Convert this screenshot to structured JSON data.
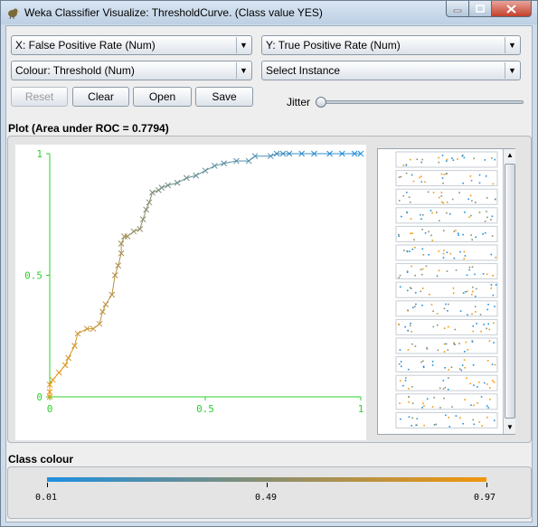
{
  "window": {
    "title": "Weka Classifier Visualize: ThresholdCurve. (Class value YES)"
  },
  "controls": {
    "x_axis": "X: False Positive Rate (Num)",
    "y_axis": "Y: True Positive Rate (Num)",
    "colour": "Colour: Threshold (Num)",
    "select": "Select Instance",
    "reset": "Reset",
    "clear": "Clear",
    "open": "Open",
    "save": "Save",
    "jitter": "Jitter",
    "jitter_value": 0
  },
  "plot": {
    "title": "Plot (Area under ROC = 0.7794)",
    "x_labels": [
      "0",
      "0.5",
      "1"
    ],
    "y_labels": [
      "1",
      "0.5",
      "0"
    ],
    "matrix_labels": [
      "X",
      "Y"
    ]
  },
  "chart_data": {
    "type": "line",
    "xlabel": "False Positive Rate",
    "ylabel": "True Positive Rate",
    "xlim": [
      0,
      1
    ],
    "ylim": [
      0,
      1
    ],
    "series": [
      {
        "x": [
          0,
          0,
          0,
          0.01,
          0.03,
          0.05,
          0.06,
          0.08,
          0.09,
          0.12,
          0.14,
          0.16,
          0.17,
          0.18,
          0.2,
          0.21,
          0.22,
          0.23,
          0.23,
          0.24,
          0.25,
          0.27,
          0.29,
          0.3,
          0.31,
          0.32,
          0.33,
          0.35,
          0.36,
          0.38,
          0.41,
          0.44,
          0.47,
          0.5,
          0.53,
          0.56,
          0.6,
          0.64,
          0.66,
          0.71,
          0.73,
          0.75,
          0.77,
          0.81,
          0.85,
          0.9,
          0.94,
          0.98,
          1
        ],
        "y": [
          0,
          0.02,
          0.05,
          0.07,
          0.1,
          0.13,
          0.16,
          0.21,
          0.26,
          0.28,
          0.28,
          0.3,
          0.35,
          0.38,
          0.42,
          0.5,
          0.54,
          0.59,
          0.63,
          0.66,
          0.66,
          0.68,
          0.69,
          0.73,
          0.77,
          0.8,
          0.84,
          0.85,
          0.86,
          0.87,
          0.88,
          0.9,
          0.91,
          0.93,
          0.95,
          0.96,
          0.97,
          0.97,
          0.99,
          0.99,
          1,
          1,
          1,
          1,
          1,
          1,
          1,
          1,
          1
        ]
      }
    ]
  },
  "legend": {
    "title": "Class colour",
    "labels": [
      "0.01",
      "0.49",
      "0.97"
    ],
    "colors": {
      "low": "#1e8fe0",
      "mid": "#8a8f70",
      "high": "#f2960a"
    }
  }
}
